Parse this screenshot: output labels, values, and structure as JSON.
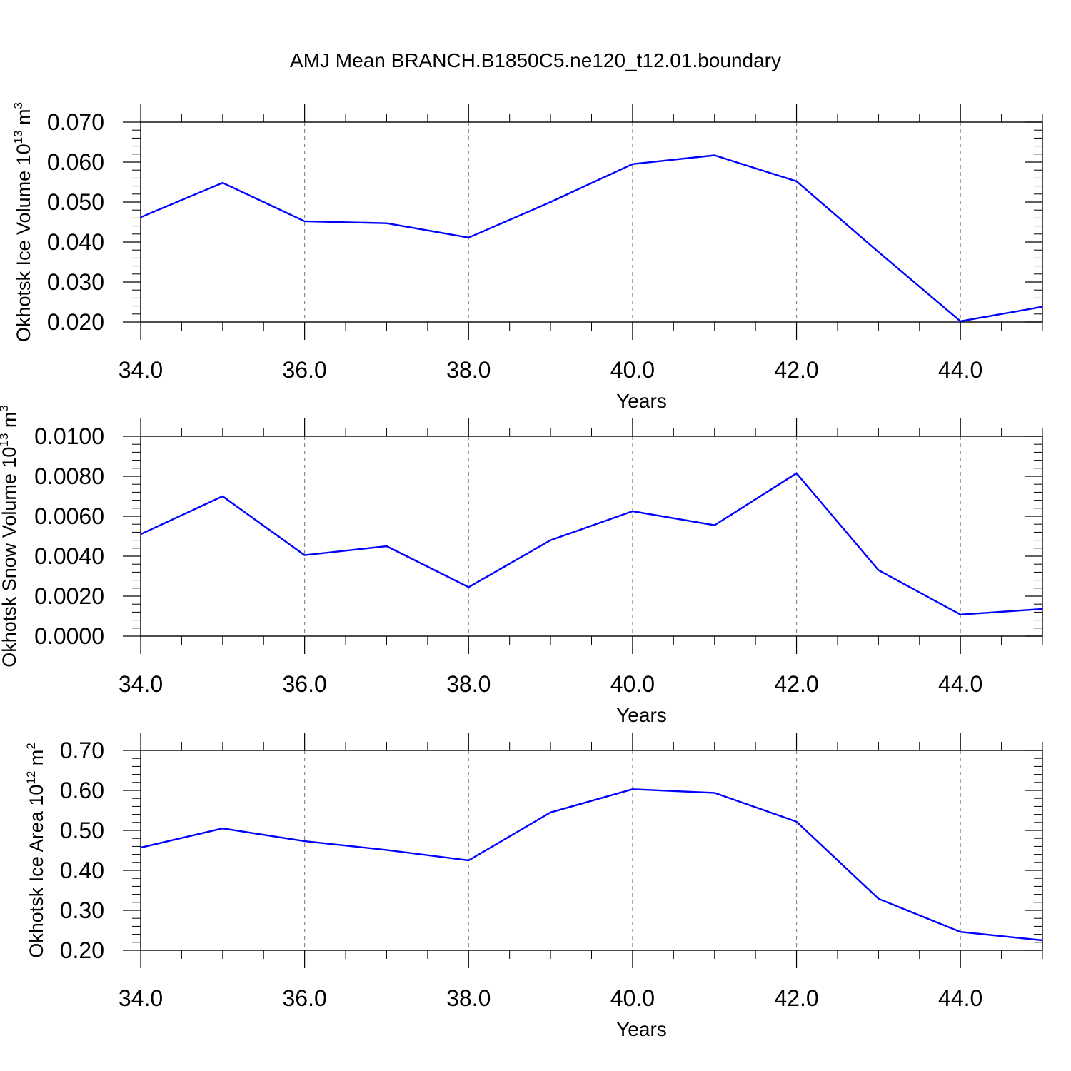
{
  "title": "AMJ Mean BRANCH.B1850C5.ne120_t12.01.boundary",
  "line_color": "#0000ff",
  "chart_data": [
    {
      "type": "line",
      "ylabel_main": "Okhotsk Ice Volume 10",
      "ylabel_exp": "13",
      "ylabel_unit": "m",
      "ylabel_unit_exp": "3",
      "xlabel": "Years",
      "xlim": [
        34,
        45
      ],
      "ylim": [
        0.02,
        0.07
      ],
      "x_ticks": [
        34,
        36,
        38,
        40,
        42,
        44
      ],
      "x_tick_labels": [
        "34.0",
        "36.0",
        "38.0",
        "40.0",
        "42.0",
        "44.0"
      ],
      "y_ticks": [
        0.02,
        0.03,
        0.04,
        0.05,
        0.06,
        0.07
      ],
      "y_tick_labels": [
        "0.020",
        "0.030",
        "0.040",
        "0.050",
        "0.060",
        "0.070"
      ],
      "grid": "dashed vertical at major x ticks",
      "x": [
        34,
        35,
        36,
        37,
        38,
        39,
        40,
        41,
        42,
        43,
        44,
        45
      ],
      "values": [
        0.0462,
        0.0548,
        0.0452,
        0.0447,
        0.0411,
        0.05,
        0.0595,
        0.0617,
        0.0552,
        0.0375,
        0.0202,
        0.0238
      ]
    },
    {
      "type": "line",
      "ylabel_main": "Okhotsk Snow Volume 10",
      "ylabel_exp": "13",
      "ylabel_unit": "m",
      "ylabel_unit_exp": "3",
      "xlabel": "Years",
      "xlim": [
        34,
        45
      ],
      "ylim": [
        0.0,
        0.01
      ],
      "x_ticks": [
        34,
        36,
        38,
        40,
        42,
        44
      ],
      "x_tick_labels": [
        "34.0",
        "36.0",
        "38.0",
        "40.0",
        "42.0",
        "44.0"
      ],
      "y_ticks": [
        0.0,
        0.002,
        0.004,
        0.006,
        0.008,
        0.01
      ],
      "y_tick_labels": [
        "0.0000",
        "0.0020",
        "0.0040",
        "0.0060",
        "0.0080",
        "0.0100"
      ],
      "grid": "dashed vertical at major x ticks",
      "x": [
        34,
        35,
        36,
        37,
        38,
        39,
        40,
        41,
        42,
        43,
        44,
        45
      ],
      "values": [
        0.0051,
        0.007,
        0.00405,
        0.0045,
        0.00245,
        0.0048,
        0.00625,
        0.00555,
        0.00815,
        0.0033,
        0.00108,
        0.00136
      ]
    },
    {
      "type": "line",
      "ylabel_main": "Okhotsk Ice Area 10",
      "ylabel_exp": "12",
      "ylabel_unit": "m",
      "ylabel_unit_exp": "2",
      "xlabel": "Years",
      "xlim": [
        34,
        45
      ],
      "ylim": [
        0.2,
        0.7
      ],
      "x_ticks": [
        34,
        36,
        38,
        40,
        42,
        44
      ],
      "x_tick_labels": [
        "34.0",
        "36.0",
        "38.0",
        "40.0",
        "42.0",
        "44.0"
      ],
      "y_ticks": [
        0.2,
        0.3,
        0.4,
        0.5,
        0.6,
        0.7
      ],
      "y_tick_labels": [
        "0.20",
        "0.30",
        "0.40",
        "0.50",
        "0.60",
        "0.70"
      ],
      "grid": "dashed vertical at major x ticks",
      "x": [
        34,
        35,
        36,
        37,
        38,
        39,
        40,
        41,
        42,
        43,
        44,
        45
      ],
      "values": [
        0.457,
        0.505,
        0.473,
        0.451,
        0.425,
        0.545,
        0.603,
        0.594,
        0.522,
        0.329,
        0.246,
        0.225
      ]
    }
  ]
}
